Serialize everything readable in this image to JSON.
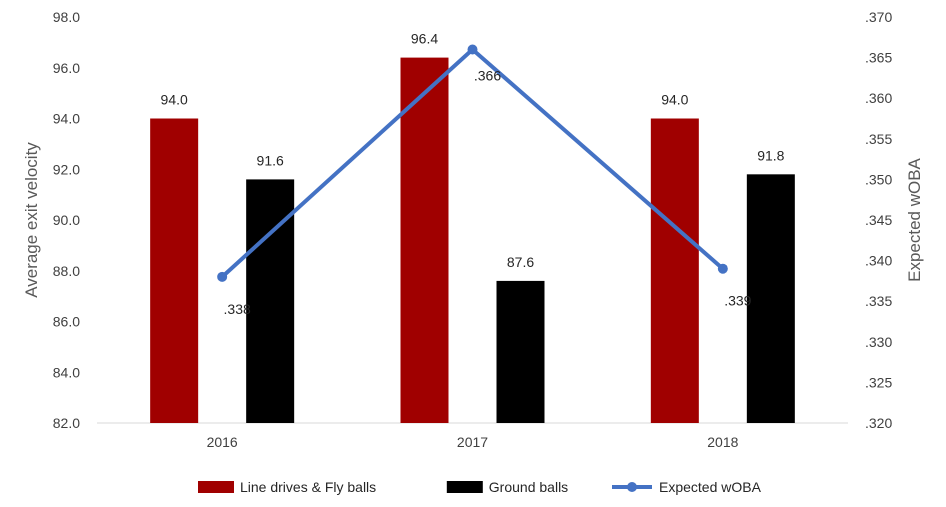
{
  "chart_data": {
    "type": "bar",
    "categories": [
      "2016",
      "2017",
      "2018"
    ],
    "series": [
      {
        "name": "Line drives & Fly balls",
        "kind": "bar",
        "axis": "left",
        "color": "#a00000",
        "values": [
          94.0,
          96.4,
          94.0
        ],
        "labels": [
          "94.0",
          "96.4",
          "94.0"
        ]
      },
      {
        "name": "Ground balls",
        "kind": "bar",
        "axis": "left",
        "color": "#000000",
        "values": [
          91.6,
          87.6,
          91.8
        ],
        "labels": [
          "91.6",
          "87.6",
          "91.8"
        ]
      },
      {
        "name": "Expected wOBA",
        "kind": "line",
        "axis": "right",
        "color": "#4472c4",
        "values": [
          0.338,
          0.366,
          0.339
        ],
        "labels": [
          ".338",
          ".366",
          ".339"
        ]
      }
    ],
    "ylabel": "Average exit velocity",
    "ylim": [
      82.0,
      98.0
    ],
    "y_ticks": [
      "82.0",
      "84.0",
      "86.0",
      "88.0",
      "90.0",
      "92.0",
      "94.0",
      "96.0",
      "98.0"
    ],
    "y2label": "Expected wOBA",
    "y2lim": [
      0.32,
      0.37
    ],
    "y2_ticks": [
      ".320",
      ".325",
      ".330",
      ".335",
      ".340",
      ".345",
      ".350",
      ".355",
      ".360",
      ".365",
      ".370"
    ],
    "grid": false,
    "legend_position": "bottom"
  }
}
